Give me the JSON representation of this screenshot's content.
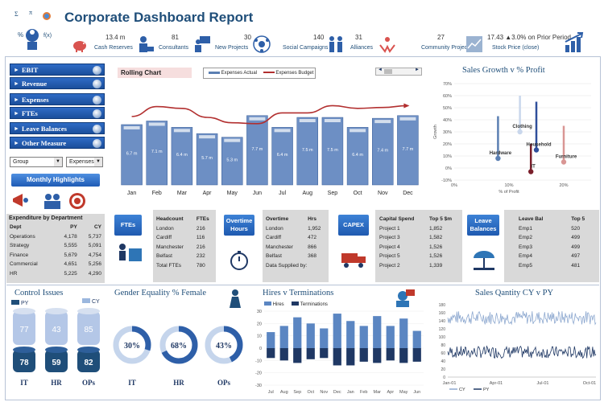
{
  "header": {
    "title": "Corporate Dashboard Report",
    "kpis": [
      {
        "value": "13.4 m",
        "label": "Cash Reserves"
      },
      {
        "value": "81",
        "label": "Consultants"
      },
      {
        "value": "30",
        "label": "New Projects"
      },
      {
        "value": "140",
        "label": "Social Campaigns"
      },
      {
        "value": "31",
        "label": "Alliances"
      },
      {
        "value": "27",
        "label": "Community Projects"
      },
      {
        "value": "17.43 ▲3.0% on Prior Period",
        "label": "Stock Price (close)"
      }
    ]
  },
  "nav": {
    "items": [
      "EBIT",
      "Revenue",
      "Expenses",
      "FTEs",
      "Leave Balances",
      "Other Measure"
    ],
    "select_group": "Group",
    "select_measure": "Expenses",
    "monthly_highlights": "Monthly Highlights"
  },
  "expenditure": {
    "title": "Expenditure by Department",
    "headers": [
      "Dept",
      "PY",
      "CY"
    ],
    "rows": [
      [
        "Operations",
        "4,178",
        "5,737"
      ],
      [
        "Strategy",
        "5,555",
        "5,091"
      ],
      [
        "Finance",
        "5,679",
        "4,754"
      ],
      [
        "Commercial",
        "4,651",
        "5,256"
      ],
      [
        "HR",
        "5,225",
        "4,290"
      ]
    ]
  },
  "rolling": {
    "title": "Rolling Chart",
    "legend_actual": "Expenses Actual",
    "legend_budget": "Expenses Budget",
    "categories": [
      "Jan",
      "Feb",
      "Mar",
      "Apr",
      "May",
      "Jun",
      "Jul",
      "Aug",
      "Sep",
      "Oct",
      "Nov",
      "Dec"
    ],
    "actual": [
      6.7,
      7.1,
      6.4,
      5.7,
      5.3,
      7.7,
      6.4,
      7.5,
      7.5,
      6.4,
      7.4,
      7.7
    ],
    "actual_labels": [
      "6.7 m",
      "7.1 m",
      "6.4 m",
      "5.7 m",
      "5.3 m",
      "7.7 m",
      "6.4 m",
      "7.5 m",
      "7.5 m",
      "6.4 m",
      "7.4 m",
      "7.7 m"
    ],
    "budget": [
      7.6,
      8.7,
      8.5,
      7.5,
      6.9,
      6.8,
      8.0,
      8.0,
      8.8,
      8.5,
      8.6,
      8.8
    ]
  },
  "sales_growth": {
    "title": "Sales Growth v % Profit",
    "ylabel": "Growth",
    "xlabel": "% of Profit",
    "xticks": [
      "0%",
      "10%",
      "20%"
    ],
    "yticks": [
      "70%",
      "60%",
      "50%",
      "40%",
      "30%",
      "20%",
      "10%",
      "0%",
      "-10%"
    ],
    "points": [
      {
        "name": "Hardware",
        "x": 8,
        "y": 8,
        "top": 43,
        "color": "#5b7fb2"
      },
      {
        "name": "Clothing",
        "x": 12,
        "y": 30,
        "top": 60,
        "color": "#c9d7ec"
      },
      {
        "name": "IT",
        "x": 14,
        "y": -3,
        "top": 20,
        "color": "#7a1f2b"
      },
      {
        "name": "Household",
        "x": 15,
        "y": 15,
        "top": 55,
        "color": "#2f4f9b"
      },
      {
        "name": "Furniture",
        "x": 20,
        "y": 5,
        "top": 35,
        "color": "#d99694"
      }
    ]
  },
  "ftes": {
    "chip": "FTEs",
    "headers": [
      "Headcount",
      "FTEs"
    ],
    "rows": [
      [
        "London",
        "216"
      ],
      [
        "Cardiff",
        "116"
      ],
      [
        "Manchester",
        "216"
      ],
      [
        "Belfast",
        "232"
      ],
      [
        "Total FTEs",
        "780"
      ]
    ]
  },
  "overtime": {
    "chip": "Overtime Hours",
    "headers": [
      "Overtime",
      "Hrs"
    ],
    "rows": [
      [
        "London",
        "1,952"
      ],
      [
        "Cardiff",
        "472"
      ],
      [
        "Manchester",
        "866"
      ],
      [
        "Belfast",
        "368"
      ],
      [
        "Data Supplied by:",
        ""
      ]
    ]
  },
  "capex": {
    "chip": "CAPEX",
    "headers": [
      "Capital Spend",
      "Top 5 $m"
    ],
    "rows": [
      [
        "Project 1",
        "1,852"
      ],
      [
        "Project 3",
        "1,582"
      ],
      [
        "Project 4",
        "1,526"
      ],
      [
        "Project 5",
        "1,526"
      ],
      [
        "Project 2",
        "1,339"
      ]
    ]
  },
  "leave": {
    "chip": "Leave Balances",
    "headers": [
      "Leave Bal",
      "Top 5"
    ],
    "rows": [
      [
        "Emp1",
        "520"
      ],
      [
        "Emp2",
        "499"
      ],
      [
        "Emp3",
        "499"
      ],
      [
        "Emp4",
        "497"
      ],
      [
        "Emp5",
        "481"
      ]
    ]
  },
  "control": {
    "title": "Control Issues",
    "legend_py": "PY",
    "legend_cy": "CY",
    "categories": [
      "IT",
      "HR",
      "OPs"
    ],
    "cy": [
      77,
      43,
      85
    ],
    "py": [
      78,
      59,
      82
    ]
  },
  "gender": {
    "title": "Gender Equality % Female",
    "categories": [
      "IT",
      "HR",
      "OPs"
    ],
    "values": [
      30,
      68,
      43
    ],
    "labels": [
      "30%",
      "68%",
      "43%"
    ]
  },
  "hires": {
    "title": "Hires v Terminations",
    "legend_hires": "Hires",
    "legend_terms": "Terminations",
    "categories": [
      "Jul",
      "Aug",
      "Sep",
      "Oct",
      "Nov",
      "Dec",
      "Jan",
      "Feb",
      "Mar",
      "Apr",
      "May",
      "Jun"
    ],
    "yticks": [
      "30",
      "20",
      "10",
      "0",
      "-10",
      "-20",
      "-30"
    ],
    "hires": [
      13,
      18,
      25,
      20,
      16,
      28,
      22,
      18,
      26,
      18,
      24,
      14
    ],
    "terms": [
      -8,
      -10,
      -12,
      -9,
      -8,
      -14,
      -14,
      -11,
      -12,
      -10,
      -12,
      -11
    ]
  },
  "sales_qty": {
    "title": "Sales Qantity CY v PY",
    "yticks": [
      "180",
      "160",
      "140",
      "120",
      "100",
      "80",
      "60",
      "40",
      "20",
      "0"
    ],
    "xticks": [
      "Jan-01",
      "Apr-01",
      "Jul-01",
      "Oct-01"
    ],
    "legend_cy": "CY",
    "legend_py": "PY"
  }
}
